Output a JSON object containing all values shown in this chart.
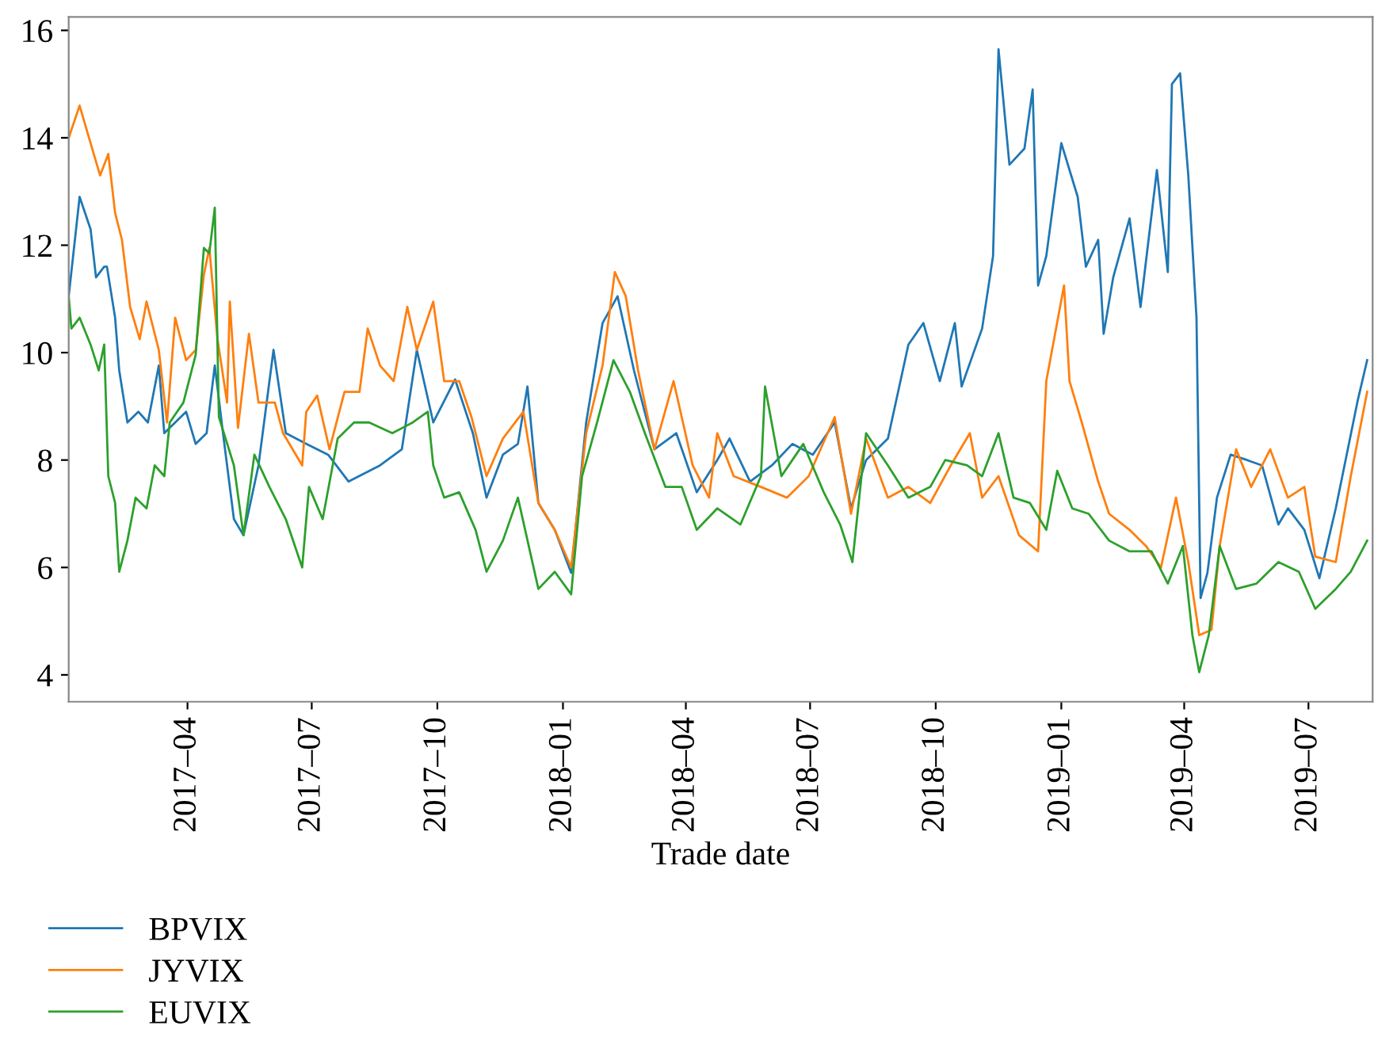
{
  "chart_data": {
    "type": "line",
    "xlabel": "Trade date",
    "xlim": [
      "2017-01-04",
      "2019-08-17"
    ],
    "ylim": [
      3.5,
      16.25
    ],
    "yticks": [
      4,
      6,
      8,
      10,
      12,
      14,
      16
    ],
    "xticks": [
      {
        "value": "2017-04-01",
        "label": "2017–04"
      },
      {
        "value": "2017-07-01",
        "label": "2017–07"
      },
      {
        "value": "2017-10-01",
        "label": "2017–10"
      },
      {
        "value": "2018-01-01",
        "label": "2018–01"
      },
      {
        "value": "2018-04-01",
        "label": "2018–04"
      },
      {
        "value": "2018-07-01",
        "label": "2018–07"
      },
      {
        "value": "2018-10-01",
        "label": "2018–10"
      },
      {
        "value": "2019-01-01",
        "label": "2019–01"
      },
      {
        "value": "2019-04-01",
        "label": "2019–04"
      },
      {
        "value": "2019-07-01",
        "label": "2019–07"
      }
    ],
    "grid": false,
    "legend": "bottom left",
    "marker": "none",
    "line_style": "solid",
    "series": [
      {
        "name": "BPVIX",
        "color": "#1f77b4",
        "x": [
          "2017-01-04",
          "2017-01-12",
          "2017-01-20",
          "2017-01-24",
          "2017-01-30",
          "2017-02-01",
          "2017-02-07",
          "2017-02-10",
          "2017-02-16",
          "2017-02-24",
          "2017-03-03",
          "2017-03-11",
          "2017-03-15",
          "2017-03-31",
          "2017-04-07",
          "2017-04-15",
          "2017-04-21",
          "2017-04-27",
          "2017-05-05",
          "2017-05-12",
          "2017-05-23",
          "2017-06-03",
          "2017-06-12",
          "2017-06-27",
          "2017-07-13",
          "2017-07-28",
          "2017-08-20",
          "2017-09-05",
          "2017-09-16",
          "2017-09-28",
          "2017-10-14",
          "2017-10-27",
          "2017-11-06",
          "2017-11-18",
          "2017-11-29",
          "2017-12-06",
          "2017-12-14",
          "2017-12-26",
          "2018-01-07",
          "2018-01-18",
          "2018-01-30",
          "2018-02-10",
          "2018-02-22",
          "2018-03-09",
          "2018-03-25",
          "2018-04-09",
          "2018-04-24",
          "2018-05-03",
          "2018-05-18",
          "2018-06-03",
          "2018-06-18",
          "2018-07-03",
          "2018-07-19",
          "2018-07-31",
          "2018-08-11",
          "2018-08-27",
          "2018-09-11",
          "2018-09-22",
          "2018-10-04",
          "2018-10-15",
          "2018-10-20",
          "2018-11-04",
          "2018-11-12",
          "2018-11-16",
          "2018-11-24",
          "2018-12-05",
          "2018-12-11",
          "2018-12-15",
          "2018-12-21",
          "2019-01-01",
          "2019-01-13",
          "2019-01-19",
          "2019-01-28",
          "2019-02-01",
          "2019-02-08",
          "2019-02-20",
          "2019-02-28",
          "2019-03-12",
          "2019-03-20",
          "2019-03-23",
          "2019-03-29",
          "2019-04-04",
          "2019-04-10",
          "2019-04-13",
          "2019-04-18",
          "2019-04-25",
          "2019-05-05",
          "2019-05-17",
          "2019-05-28",
          "2019-06-09",
          "2019-06-16",
          "2019-06-28",
          "2019-07-09",
          "2019-07-21",
          "2019-07-29",
          "2019-08-06",
          "2019-08-13"
        ],
        "values": [
          11.05,
          12.9,
          12.3,
          11.4,
          11.6,
          11.6,
          10.65,
          9.67,
          8.7,
          8.9,
          8.7,
          9.76,
          8.5,
          8.9,
          8.3,
          8.5,
          9.76,
          8.5,
          6.9,
          6.6,
          7.9,
          10.05,
          8.5,
          8.3,
          8.1,
          7.6,
          7.9,
          8.2,
          10.05,
          8.7,
          9.5,
          8.5,
          7.3,
          8.1,
          8.3,
          9.37,
          7.2,
          6.7,
          5.9,
          8.7,
          10.55,
          11.05,
          9.67,
          8.2,
          8.5,
          7.4,
          8.0,
          8.4,
          7.6,
          7.9,
          8.3,
          8.1,
          8.7,
          7.1,
          8.0,
          8.4,
          10.15,
          10.55,
          9.47,
          10.55,
          9.37,
          10.45,
          11.8,
          15.65,
          13.5,
          13.8,
          14.9,
          11.25,
          11.8,
          13.9,
          12.9,
          11.6,
          12.1,
          10.35,
          11.4,
          12.5,
          10.85,
          13.4,
          11.5,
          15.0,
          15.2,
          13.3,
          10.65,
          5.43,
          5.9,
          7.3,
          8.1,
          8.0,
          7.9,
          6.8,
          7.1,
          6.7,
          5.8,
          7.1,
          8.1,
          9.1,
          9.86
        ]
      },
      {
        "name": "JYVIX",
        "color": "#ff7f0e",
        "x": [
          "2017-01-04",
          "2017-01-12",
          "2017-01-20",
          "2017-01-27",
          "2017-02-02",
          "2017-02-07",
          "2017-02-12",
          "2017-02-18",
          "2017-02-25",
          "2017-03-02",
          "2017-03-11",
          "2017-03-17",
          "2017-03-23",
          "2017-03-31",
          "2017-04-07",
          "2017-04-13",
          "2017-04-17",
          "2017-04-23",
          "2017-04-30",
          "2017-05-02",
          "2017-05-08",
          "2017-05-16",
          "2017-05-23",
          "2017-06-04",
          "2017-06-10",
          "2017-06-24",
          "2017-06-27",
          "2017-07-05",
          "2017-07-14",
          "2017-07-25",
          "2017-08-05",
          "2017-08-11",
          "2017-08-20",
          "2017-08-30",
          "2017-09-09",
          "2017-09-16",
          "2017-09-28",
          "2017-10-06",
          "2017-10-17",
          "2017-10-26",
          "2017-11-06",
          "2017-11-18",
          "2017-12-03",
          "2017-12-14",
          "2017-12-26",
          "2018-01-07",
          "2018-01-18",
          "2018-01-30",
          "2018-02-08",
          "2018-02-16",
          "2018-02-25",
          "2018-03-09",
          "2018-03-23",
          "2018-04-06",
          "2018-04-18",
          "2018-04-24",
          "2018-05-06",
          "2018-05-26",
          "2018-06-14",
          "2018-06-30",
          "2018-07-19",
          "2018-07-31",
          "2018-08-11",
          "2018-08-27",
          "2018-09-11",
          "2018-09-27",
          "2018-10-12",
          "2018-10-26",
          "2018-11-04",
          "2018-11-16",
          "2018-12-01",
          "2018-12-15",
          "2018-12-21",
          "2019-01-03",
          "2019-01-07",
          "2019-01-16",
          "2019-01-28",
          "2019-02-05",
          "2019-02-20",
          "2019-03-04",
          "2019-03-15",
          "2019-03-26",
          "2019-04-04",
          "2019-04-12",
          "2019-04-21",
          "2019-04-27",
          "2019-05-09",
          "2019-05-20",
          "2019-06-03",
          "2019-06-16",
          "2019-06-28",
          "2019-07-06",
          "2019-07-21",
          "2019-08-01",
          "2019-08-13"
        ],
        "values": [
          14.0,
          14.6,
          13.9,
          13.3,
          13.7,
          12.6,
          12.1,
          10.85,
          10.25,
          10.95,
          10.05,
          8.7,
          10.65,
          9.86,
          10.05,
          11.45,
          11.95,
          10.25,
          9.07,
          10.95,
          8.6,
          10.35,
          9.07,
          9.07,
          8.5,
          7.9,
          8.9,
          9.2,
          8.2,
          9.27,
          9.27,
          10.45,
          9.76,
          9.47,
          10.85,
          10.05,
          10.95,
          9.47,
          9.47,
          8.8,
          7.7,
          8.4,
          8.9,
          7.2,
          6.7,
          6.0,
          8.5,
          9.76,
          11.5,
          11.05,
          9.67,
          8.2,
          9.47,
          7.9,
          7.3,
          8.5,
          7.7,
          7.5,
          7.3,
          7.7,
          8.8,
          7.0,
          8.4,
          7.3,
          7.5,
          7.2,
          7.9,
          8.5,
          7.3,
          7.7,
          6.6,
          6.3,
          9.47,
          11.25,
          9.47,
          8.7,
          7.6,
          7.0,
          6.7,
          6.4,
          6.0,
          7.3,
          6.1,
          4.74,
          4.84,
          6.4,
          8.2,
          7.5,
          8.2,
          7.3,
          7.5,
          6.2,
          6.1,
          7.7,
          9.27
        ]
      },
      {
        "name": "EUVIX",
        "color": "#2ca02c",
        "x": [
          "2017-01-04",
          "2017-01-06",
          "2017-01-12",
          "2017-01-20",
          "2017-01-26",
          "2017-01-30",
          "2017-02-02",
          "2017-02-07",
          "2017-02-10",
          "2017-02-16",
          "2017-02-22",
          "2017-03-02",
          "2017-03-08",
          "2017-03-15",
          "2017-03-19",
          "2017-03-29",
          "2017-04-07",
          "2017-04-13",
          "2017-04-17",
          "2017-04-21",
          "2017-04-24",
          "2017-05-05",
          "2017-05-12",
          "2017-05-20",
          "2017-05-31",
          "2017-06-12",
          "2017-06-24",
          "2017-06-29",
          "2017-07-09",
          "2017-07-20",
          "2017-08-01",
          "2017-08-12",
          "2017-08-29",
          "2017-09-13",
          "2017-09-24",
          "2017-09-28",
          "2017-10-06",
          "2017-10-17",
          "2017-10-29",
          "2017-11-06",
          "2017-11-18",
          "2017-11-29",
          "2017-12-14",
          "2017-12-26",
          "2018-01-07",
          "2018-01-15",
          "2018-01-26",
          "2018-02-07",
          "2018-02-19",
          "2018-03-02",
          "2018-03-17",
          "2018-03-29",
          "2018-04-09",
          "2018-04-24",
          "2018-05-11",
          "2018-05-26",
          "2018-05-29",
          "2018-06-10",
          "2018-06-26",
          "2018-07-11",
          "2018-07-23",
          "2018-08-01",
          "2018-08-11",
          "2018-08-27",
          "2018-09-11",
          "2018-09-27",
          "2018-10-08",
          "2018-10-24",
          "2018-11-04",
          "2018-11-16",
          "2018-11-27",
          "2018-12-09",
          "2018-12-21",
          "2018-12-29",
          "2019-01-09",
          "2019-01-21",
          "2019-02-05",
          "2019-02-20",
          "2019-03-08",
          "2019-03-20",
          "2019-03-31",
          "2019-04-07",
          "2019-04-12",
          "2019-04-19",
          "2019-04-27",
          "2019-05-09",
          "2019-05-24",
          "2019-06-09",
          "2019-06-24",
          "2019-07-06",
          "2019-07-21",
          "2019-08-01",
          "2019-08-13"
        ],
        "values": [
          11.05,
          10.45,
          10.65,
          10.15,
          9.67,
          10.15,
          7.7,
          7.2,
          5.92,
          6.5,
          7.3,
          7.1,
          7.9,
          7.7,
          8.7,
          9.07,
          9.96,
          11.95,
          11.85,
          12.7,
          8.8,
          7.9,
          6.6,
          8.1,
          7.5,
          6.9,
          6.0,
          7.5,
          6.9,
          8.4,
          8.7,
          8.7,
          8.5,
          8.7,
          8.9,
          7.9,
          7.3,
          7.4,
          6.7,
          5.92,
          6.5,
          7.3,
          5.6,
          5.92,
          5.5,
          7.7,
          8.7,
          9.86,
          9.27,
          8.5,
          7.5,
          7.5,
          6.7,
          7.1,
          6.8,
          7.7,
          9.37,
          7.7,
          8.3,
          7.4,
          6.8,
          6.1,
          8.5,
          7.9,
          7.3,
          7.5,
          8.0,
          7.9,
          7.7,
          8.5,
          7.3,
          7.2,
          6.7,
          7.8,
          7.1,
          7.0,
          6.5,
          6.3,
          6.3,
          5.7,
          6.4,
          4.74,
          4.05,
          4.74,
          6.4,
          5.6,
          5.7,
          6.1,
          5.92,
          5.23,
          5.6,
          5.92,
          6.5
        ]
      }
    ]
  }
}
